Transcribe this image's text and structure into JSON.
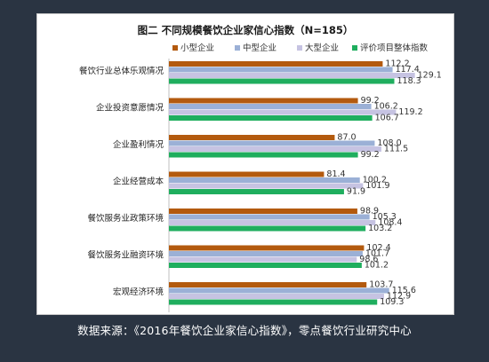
{
  "caption": "数据来源：《2016年餐饮企业家信心指数》，零点餐饮行业研究中心",
  "chart_data": {
    "type": "bar",
    "orientation": "horizontal",
    "title": "图二 不同规模餐饮企业家信心指数（N=185）",
    "categories": [
      "餐饮行业总体乐观情况",
      "企业投资意愿情况",
      "企业盈利情况",
      "企业经营成本",
      "餐饮服务业政策环境",
      "餐饮服务业融资环境",
      "宏观经济环境"
    ],
    "series": [
      {
        "name": "小型企业",
        "color": "#b35a0e",
        "values": [
          112.2,
          99.2,
          87.0,
          81.4,
          98.9,
          102.4,
          103.7
        ]
      },
      {
        "name": "中型企业",
        "color": "#9bb0d6",
        "values": [
          117.4,
          106.2,
          108.0,
          100.2,
          105.3,
          101.7,
          115.6
        ]
      },
      {
        "name": "大型企业",
        "color": "#c6c3e2",
        "values": [
          129.1,
          119.2,
          111.5,
          101.9,
          108.4,
          98.6,
          112.9
        ]
      },
      {
        "name": "评价项目整体指数",
        "color": "#1fae5e",
        "values": [
          118.3,
          106.7,
          99.2,
          91.9,
          103.2,
          101.2,
          109.3
        ]
      }
    ],
    "xlim": [
      0,
      140
    ],
    "legend_position": "top",
    "grid": false
  }
}
